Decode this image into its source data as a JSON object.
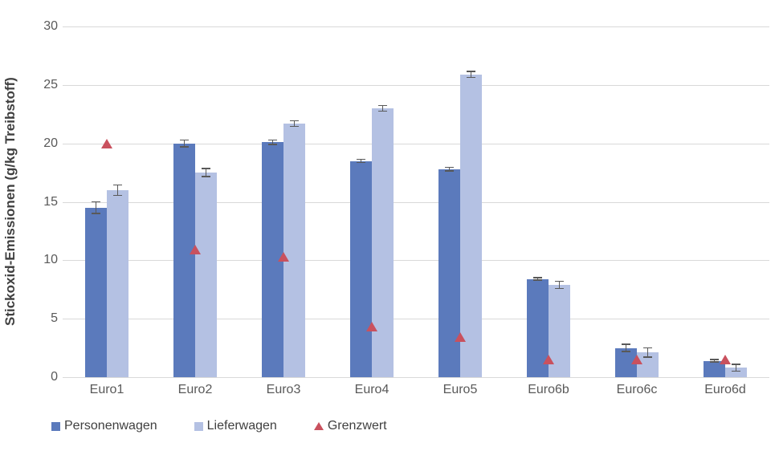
{
  "chart_data": {
    "type": "bar",
    "ylabel": "Stickoxid-Emissionen (g/kg Treibstoff)",
    "ylim": [
      0,
      30
    ],
    "yticks": [
      0,
      5,
      10,
      15,
      20,
      25,
      30
    ],
    "grid": "horizontal",
    "legend_position": "bottom-left",
    "categories": [
      "Euro1",
      "Euro2",
      "Euro3",
      "Euro4",
      "Euro5",
      "Euro6b",
      "Euro6c",
      "Euro6d"
    ],
    "series": [
      {
        "name": "Personenwagen",
        "marker": "bar",
        "color": "#5b7abc",
        "values": [
          14.5,
          20.0,
          20.1,
          18.5,
          17.8,
          8.4,
          2.5,
          1.4
        ],
        "errors": [
          0.5,
          0.3,
          0.2,
          0.15,
          0.15,
          0.1,
          0.3,
          0.1
        ]
      },
      {
        "name": "Lieferwagen",
        "marker": "bar",
        "color": "#b4c1e3",
        "values": [
          16.0,
          17.5,
          21.7,
          23.0,
          25.9,
          7.9,
          2.1,
          0.8
        ],
        "errors": [
          0.45,
          0.35,
          0.25,
          0.25,
          0.25,
          0.3,
          0.4,
          0.3
        ]
      },
      {
        "name": "Grenzwert",
        "marker": "triangle",
        "color": "#c9515e",
        "values": [
          20.0,
          10.9,
          10.3,
          4.3,
          3.4,
          1.5,
          1.5,
          1.5
        ]
      }
    ],
    "colors": {
      "grid": "#d9d9d9",
      "axis_text": "#595959",
      "ylabel_text": "#404040",
      "error_bar": "#595959"
    }
  }
}
